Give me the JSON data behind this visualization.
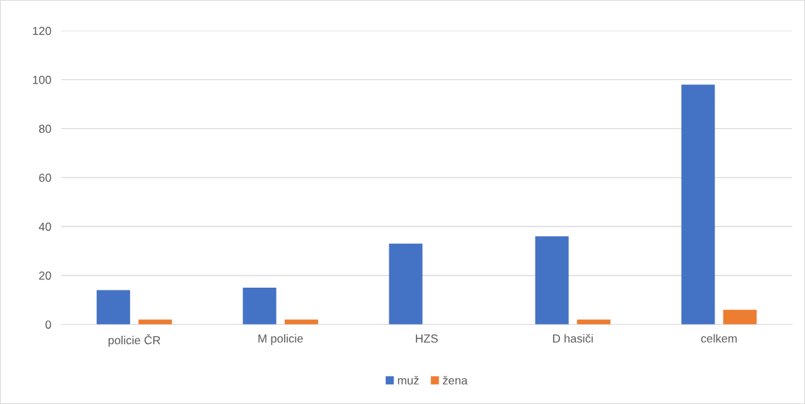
{
  "chart_data": {
    "type": "bar",
    "categories": [
      "policie ČR",
      "M policie",
      "HZS",
      "D hasiči",
      "celkem"
    ],
    "series": [
      {
        "name": "muž",
        "color": "#4472c4",
        "values": [
          14,
          15,
          33,
          36,
          98
        ]
      },
      {
        "name": "žena",
        "color": "#ed7d31",
        "values": [
          2,
          2,
          0,
          2,
          6
        ]
      }
    ],
    "ylim": [
      0,
      120
    ],
    "yticks": [
      0,
      20,
      40,
      60,
      80,
      100,
      120
    ],
    "grid": "y",
    "legend": "bottom"
  }
}
